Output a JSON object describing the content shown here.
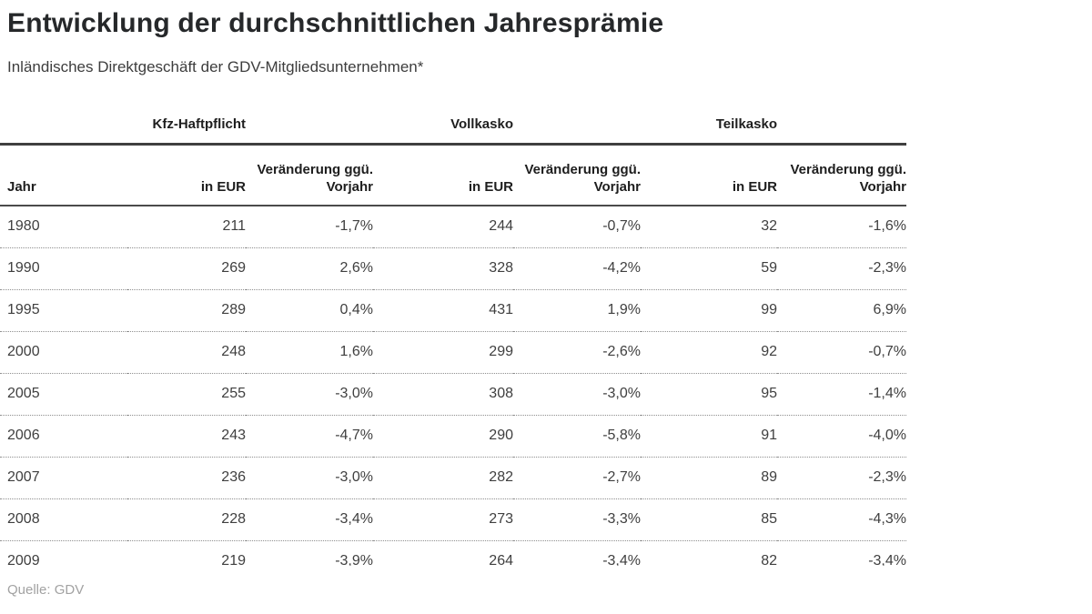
{
  "header": {
    "title": "Entwicklung der durchschnittlichen Jahresprämie",
    "subtitle": "Inländisches Direktgeschäft der GDV-Mitgliedsunternehmen*"
  },
  "chart_data": {
    "type": "table",
    "title": "Entwicklung der durchschnittlichen Jahresprämie",
    "subtitle": "Inländisches Direktgeschäft der GDV-Mitgliedsunternehmen*",
    "column_groups": [
      "Kfz-Haftpflicht",
      "Vollkasko",
      "Teilkasko"
    ],
    "columns": [
      "Jahr",
      "in EUR",
      "Veränderung ggü. Vorjahr",
      "in EUR",
      "Veränderung ggü. Vorjahr",
      "in EUR",
      "Veränderung ggü. Vorjahr"
    ],
    "rows": [
      [
        "1980",
        "211",
        "-1,7%",
        "244",
        "-0,7%",
        "32",
        "-1,6%"
      ],
      [
        "1990",
        "269",
        "2,6%",
        "328",
        "-4,2%",
        "59",
        "-2,3%"
      ],
      [
        "1995",
        "289",
        "0,4%",
        "431",
        "1,9%",
        "99",
        "6,9%"
      ],
      [
        "2000",
        "248",
        "1,6%",
        "299",
        "-2,6%",
        "92",
        "-0,7%"
      ],
      [
        "2005",
        "255",
        "-3,0%",
        "308",
        "-3,0%",
        "95",
        "-1,4%"
      ],
      [
        "2006",
        "243",
        "-4,7%",
        "290",
        "-5,8%",
        "91",
        "-4,0%"
      ],
      [
        "2007",
        "236",
        "-3,0%",
        "282",
        "-2,7%",
        "89",
        "-2,3%"
      ],
      [
        "2008",
        "228",
        "-3,4%",
        "273",
        "-3,3%",
        "85",
        "-4,3%"
      ],
      [
        "2009",
        "219",
        "-3,9%",
        "264",
        "-3,4%",
        "82",
        "-3,4%"
      ]
    ],
    "source": "Quelle: GDV"
  },
  "colors": {
    "heading_text": "#26282a",
    "body_text": "#3f3f3f",
    "rule_thick": "#3f3f3f",
    "rule_thin": "#4a4a4a",
    "row_divider": "#8f8f8f",
    "source_text": "#a2a2a2",
    "background": "#ffffff"
  }
}
